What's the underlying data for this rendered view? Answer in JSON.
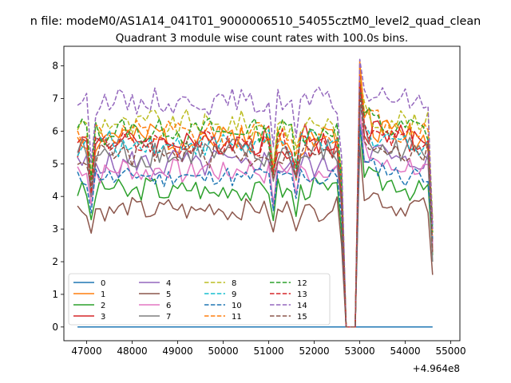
{
  "chart_data": {
    "type": "line",
    "suptitle": "n file: modeM0/AS1A14_041T01_9000006510_54055cztM0_level2_quad_clean",
    "title": "Quadrant 3 module wise count rates with 100.0s bins.",
    "xlabel": "",
    "ylabel": "",
    "x_offset_text": "+4.964e8",
    "xlim": [
      46500,
      55200
    ],
    "ylim": [
      -0.42,
      8.6
    ],
    "xticks": [
      47000,
      48000,
      49000,
      50000,
      51000,
      52000,
      53000,
      54000,
      55000
    ],
    "yticks": [
      0,
      1,
      2,
      3,
      4,
      5,
      6,
      7,
      8
    ],
    "x_start": 46800,
    "x_step": 100,
    "n_points": 79,
    "legend": {
      "placement": "lower-left",
      "ncol": 4
    },
    "dips": [
      {
        "x": 47100,
        "factor": 0.78
      },
      {
        "x": 51100,
        "factor": 0.8
      },
      {
        "x": 51600,
        "factor": 0.85
      },
      {
        "x": 52600,
        "factor": 0.75
      }
    ],
    "zero_x": [
      52700,
      52800,
      52900
    ],
    "peak_x": 53000,
    "end_x": 54600,
    "series": [
      {
        "name": "0",
        "color": "#1f77b4",
        "dash": "solid",
        "base": 0,
        "peak": 0,
        "end": 0,
        "amp": 0,
        "seed": 1
      },
      {
        "name": "1",
        "color": "#ff7f0e",
        "dash": "solid",
        "base": 5.8,
        "peak": 8.15,
        "end": 2.6,
        "amp": 0.45,
        "seed": 2
      },
      {
        "name": "2",
        "color": "#2ca02c",
        "dash": "solid",
        "base": 4.2,
        "peak": 6.2,
        "end": 2.2,
        "amp": 0.35,
        "seed": 3
      },
      {
        "name": "3",
        "color": "#d62728",
        "dash": "solid",
        "base": 5.7,
        "peak": 7.7,
        "end": 2.3,
        "amp": 0.45,
        "seed": 4
      },
      {
        "name": "4",
        "color": "#9467bd",
        "dash": "solid",
        "base": 5.0,
        "peak": 6.7,
        "end": 2.6,
        "amp": 0.4,
        "seed": 5
      },
      {
        "name": "5",
        "color": "#8c564b",
        "dash": "solid",
        "base": 3.6,
        "peak": 5.6,
        "end": 1.6,
        "amp": 0.3,
        "seed": 6
      },
      {
        "name": "6",
        "color": "#e377c2",
        "dash": "solid",
        "base": 4.8,
        "peak": 6.5,
        "end": 2.5,
        "amp": 0.35,
        "seed": 7
      },
      {
        "name": "7",
        "color": "#7f7f7f",
        "dash": "solid",
        "base": 5.3,
        "peak": 6.8,
        "end": 2.0,
        "amp": 0.45,
        "seed": 8
      },
      {
        "name": "8",
        "color": "#bcbd22",
        "dash": "dashed",
        "base": 6.2,
        "peak": 7.6,
        "end": 3.3,
        "amp": 0.4,
        "seed": 9
      },
      {
        "name": "9",
        "color": "#17becf",
        "dash": "dashed",
        "base": 5.6,
        "peak": 7.3,
        "end": 3.1,
        "amp": 0.35,
        "seed": 10
      },
      {
        "name": "10",
        "color": "#1f77b4",
        "dash": "dashed",
        "base": 4.6,
        "peak": 6.2,
        "end": 2.7,
        "amp": 0.3,
        "seed": 11
      },
      {
        "name": "11",
        "color": "#ff7f0e",
        "dash": "dashed",
        "base": 5.9,
        "peak": 8.1,
        "end": 2.8,
        "amp": 0.35,
        "seed": 12
      },
      {
        "name": "12",
        "color": "#2ca02c",
        "dash": "dashed",
        "base": 6.0,
        "peak": 7.4,
        "end": 2.9,
        "amp": 0.35,
        "seed": 13
      },
      {
        "name": "13",
        "color": "#d62728",
        "dash": "dashed",
        "base": 5.6,
        "peak": 7.5,
        "end": 3.2,
        "amp": 0.35,
        "seed": 14
      },
      {
        "name": "14",
        "color": "#9467bd",
        "dash": "dashed",
        "base": 6.9,
        "peak": 8.2,
        "end": 3.0,
        "amp": 0.35,
        "seed": 15
      },
      {
        "name": "15",
        "color": "#8c564b",
        "dash": "dashed",
        "base": 5.3,
        "peak": 7.2,
        "end": 2.3,
        "amp": 0.35,
        "seed": 16
      }
    ]
  }
}
